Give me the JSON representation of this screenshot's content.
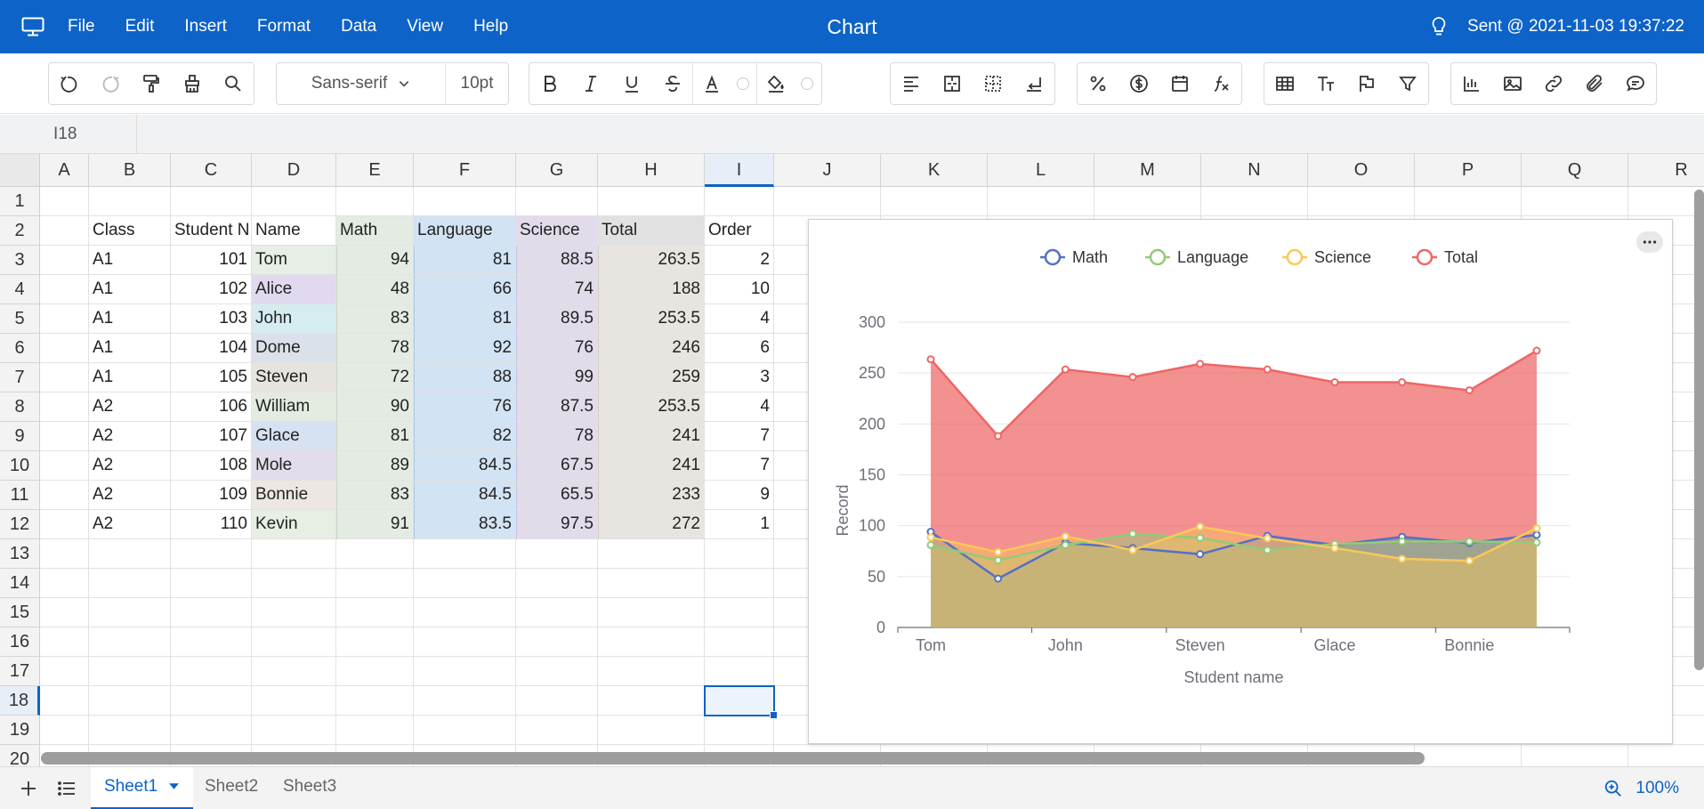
{
  "titlebar": {
    "title": "Chart",
    "menu": [
      "File",
      "Edit",
      "Insert",
      "Format",
      "Data",
      "View",
      "Help"
    ],
    "status": "Sent @ 2021-11-03 19:37:22"
  },
  "toolbar": {
    "font_family": "Sans-serif",
    "font_size": "10pt"
  },
  "namebox": "I18",
  "columns": [
    "A",
    "B",
    "C",
    "D",
    "E",
    "F",
    "G",
    "H",
    "I",
    "J",
    "K",
    "L",
    "M",
    "N",
    "O",
    "P",
    "Q",
    "R"
  ],
  "rows": [
    "1",
    "2",
    "3",
    "4",
    "5",
    "6",
    "7",
    "8",
    "9",
    "10",
    "11",
    "12",
    "13",
    "14",
    "15",
    "16",
    "17",
    "18",
    "19",
    "20"
  ],
  "table": {
    "headers": [
      "Class",
      "Student N",
      "Name",
      "Math",
      "Language",
      "Science",
      "Total",
      "Order"
    ],
    "rows": [
      [
        "A1",
        "101",
        "Tom",
        "94",
        "81",
        "88.5",
        "263.5",
        "2"
      ],
      [
        "A1",
        "102",
        "Alice",
        "48",
        "66",
        "74",
        "188",
        "10"
      ],
      [
        "A1",
        "103",
        "John",
        "83",
        "81",
        "89.5",
        "253.5",
        "4"
      ],
      [
        "A1",
        "104",
        "Dome",
        "78",
        "92",
        "76",
        "246",
        "6"
      ],
      [
        "A1",
        "105",
        "Steven",
        "72",
        "88",
        "99",
        "259",
        "3"
      ],
      [
        "A2",
        "106",
        "William",
        "90",
        "76",
        "87.5",
        "253.5",
        "4"
      ],
      [
        "A2",
        "107",
        "Glace",
        "81",
        "82",
        "78",
        "241",
        "7"
      ],
      [
        "A2",
        "108",
        "Mole",
        "89",
        "84.5",
        "67.5",
        "241",
        "7"
      ],
      [
        "A2",
        "109",
        "Bonnie",
        "83",
        "84.5",
        "65.5",
        "233",
        "9"
      ],
      [
        "A2",
        "110",
        "Kevin",
        "91",
        "83.5",
        "97.5",
        "272",
        "1"
      ]
    ]
  },
  "selected_cell": "I18",
  "sheets": [
    "Sheet1",
    "Sheet2",
    "Sheet3"
  ],
  "active_sheet": "Sheet1",
  "zoom": "100%",
  "colors": {
    "brand": "#0d63c8",
    "math": "#5470c6",
    "language": "#91cc75",
    "science": "#fac858",
    "total": "#ee6666"
  },
  "chart_data": {
    "type": "line",
    "area": true,
    "categories": [
      "Tom",
      "Alice",
      "John",
      "Dome",
      "Steven",
      "William",
      "Glace",
      "Mole",
      "Bonnie",
      "Kevin"
    ],
    "tick_labels": [
      "Tom",
      "John",
      "Steven",
      "Glace",
      "Bonnie"
    ],
    "series": [
      {
        "name": "Math",
        "values": [
          94,
          48,
          83,
          78,
          72,
          90,
          81,
          89,
          83,
          91
        ]
      },
      {
        "name": "Language",
        "values": [
          81,
          66,
          81,
          92,
          88,
          76,
          82,
          84.5,
          84.5,
          83.5
        ]
      },
      {
        "name": "Science",
        "values": [
          88.5,
          74,
          89.5,
          76,
          99,
          87.5,
          78,
          67.5,
          65.5,
          97.5
        ]
      },
      {
        "name": "Total",
        "values": [
          263.5,
          188,
          253.5,
          246,
          259,
          253.5,
          241,
          241,
          233,
          272
        ]
      }
    ],
    "xlabel": "Student name",
    "ylabel": "Record",
    "ylim": [
      0,
      300
    ],
    "yticks": [
      0,
      50,
      100,
      150,
      200,
      250,
      300
    ],
    "legend": "top-center",
    "grid": true
  }
}
